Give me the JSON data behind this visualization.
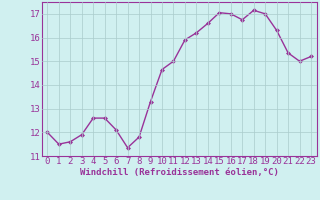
{
  "x": [
    0,
    1,
    2,
    3,
    4,
    5,
    6,
    7,
    8,
    9,
    10,
    11,
    12,
    13,
    14,
    15,
    16,
    17,
    18,
    19,
    20,
    21,
    22,
    23
  ],
  "y": [
    12.0,
    11.5,
    11.6,
    11.9,
    12.6,
    12.6,
    12.1,
    11.35,
    11.8,
    13.3,
    14.65,
    15.0,
    15.9,
    16.2,
    16.6,
    17.05,
    17.0,
    16.75,
    17.15,
    17.0,
    16.3,
    15.35,
    15.0,
    15.2
  ],
  "line_color": "#993399",
  "marker": "D",
  "marker_size": 2,
  "bg_color": "#d0f0f0",
  "grid_color": "#aacccc",
  "xlabel": "Windchill (Refroidissement éolien,°C)",
  "xlabel_color": "#993399",
  "tick_color": "#993399",
  "spine_color": "#993399",
  "ylim": [
    11.0,
    17.5
  ],
  "yticks": [
    11,
    12,
    13,
    14,
    15,
    16,
    17
  ],
  "xticks": [
    0,
    1,
    2,
    3,
    4,
    5,
    6,
    7,
    8,
    9,
    10,
    11,
    12,
    13,
    14,
    15,
    16,
    17,
    18,
    19,
    20,
    21,
    22,
    23
  ],
  "linewidth": 1.0,
  "font_size": 6.5
}
